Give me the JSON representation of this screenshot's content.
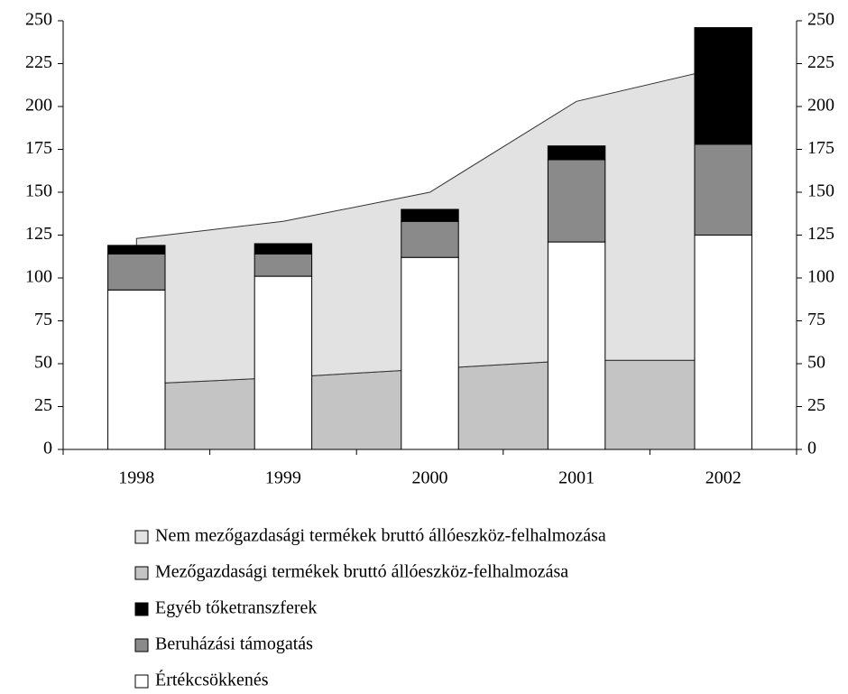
{
  "chart_data": {
    "type": "bar",
    "categories": [
      "1998",
      "1999",
      "2000",
      "2001",
      "2002"
    ],
    "series": [
      {
        "name": "Nem mezőgazdasági termékek bruttó állóeszköz-felhalmozása",
        "type": "area",
        "color": "#e2e2e2",
        "values": [
          85,
          91,
          103,
          151,
          171
        ]
      },
      {
        "name": "Mezőgazdasági termékek bruttó állóeszköz-felhalmozása",
        "type": "area",
        "color": "#c4c4c4",
        "values": [
          38,
          42,
          47,
          52,
          52
        ]
      },
      {
        "name": "Egyéb tőketranszferek",
        "type": "bar",
        "color": "#000000",
        "values": [
          5,
          6,
          7,
          8,
          68
        ]
      },
      {
        "name": "Beruházási támogatás",
        "type": "bar",
        "color": "#8a8a8a",
        "values": [
          21,
          13,
          21,
          48,
          53
        ]
      },
      {
        "name": "Értékcsökkenés",
        "type": "bar",
        "color": "#ffffff",
        "values": [
          93,
          101,
          112,
          121,
          125
        ]
      }
    ],
    "ylim": [
      0,
      250
    ],
    "yticks": [
      0,
      25,
      50,
      75,
      100,
      125,
      150,
      175,
      200,
      225,
      250
    ],
    "y2lim": [
      0,
      250
    ],
    "y2ticks": [
      0,
      25,
      50,
      75,
      100,
      125,
      150,
      175,
      200,
      225,
      250
    ],
    "legend": "bottom"
  }
}
